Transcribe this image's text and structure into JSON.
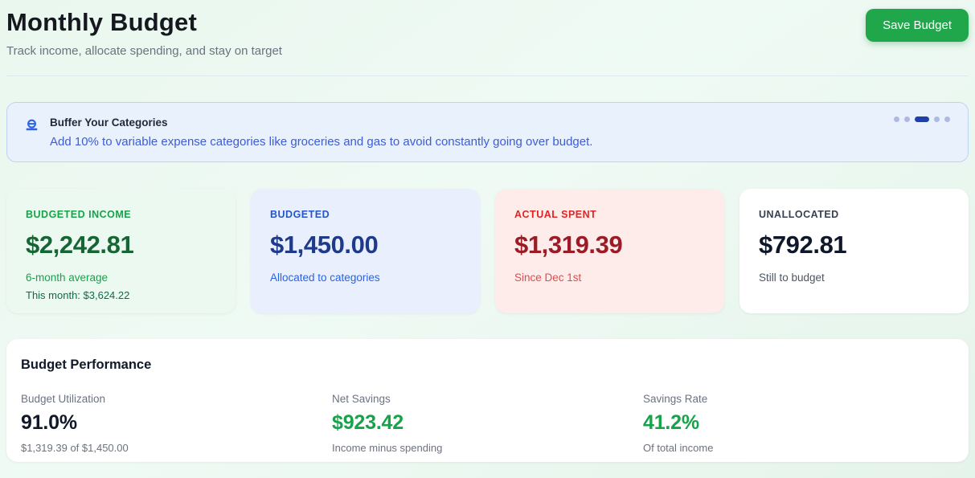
{
  "header": {
    "title": "Monthly Budget",
    "subtitle": "Track income, allocate spending, and stay on target",
    "save_label": "Save Budget"
  },
  "tip_banner": {
    "icon": "coin-savings-icon",
    "title": "Buffer Your Categories",
    "description": "Add 10% to variable expense categories like groceries and gas to avoid constantly going over budget.",
    "dots": [
      "inactive",
      "inactive",
      "active",
      "inactive",
      "inactive"
    ]
  },
  "stat_cards": [
    {
      "label": "BUDGETED INCOME",
      "value": "$2,242.81",
      "sub1": "6-month average",
      "sub2": "This month: $3,624.22",
      "theme": "green"
    },
    {
      "label": "BUDGETED",
      "value": "$1,450.00",
      "sub1": "Allocated to categories",
      "theme": "blue"
    },
    {
      "label": "ACTUAL SPENT",
      "value": "$1,319.39",
      "sub1": "Since Dec 1st",
      "theme": "red"
    },
    {
      "label": "UNALLOCATED",
      "value": "$792.81",
      "sub1": "Still to budget",
      "theme": "neutral"
    }
  ],
  "performance": {
    "title": "Budget Performance",
    "metrics": [
      {
        "label": "Budget Utilization",
        "value": "91.0%",
        "sub": "$1,319.39 of $1,450.00",
        "accent": false
      },
      {
        "label": "Net Savings",
        "value": "$923.42",
        "sub": "Income minus spending",
        "accent": true
      },
      {
        "label": "Savings Rate",
        "value": "41.2%",
        "sub": "Of total income",
        "accent": true
      }
    ]
  },
  "colors": {
    "page_background": "#e9f7ee",
    "button_green": "#21a74b",
    "banner_background": "#e9f1fd",
    "banner_border": "#bed3f3",
    "banner_text_blue": "#3d5cd7",
    "active_dot_blue": "#1e40af",
    "green_accent": "#16a34a",
    "blue_accent": "#2563eb",
    "red_accent": "#dc2626"
  }
}
